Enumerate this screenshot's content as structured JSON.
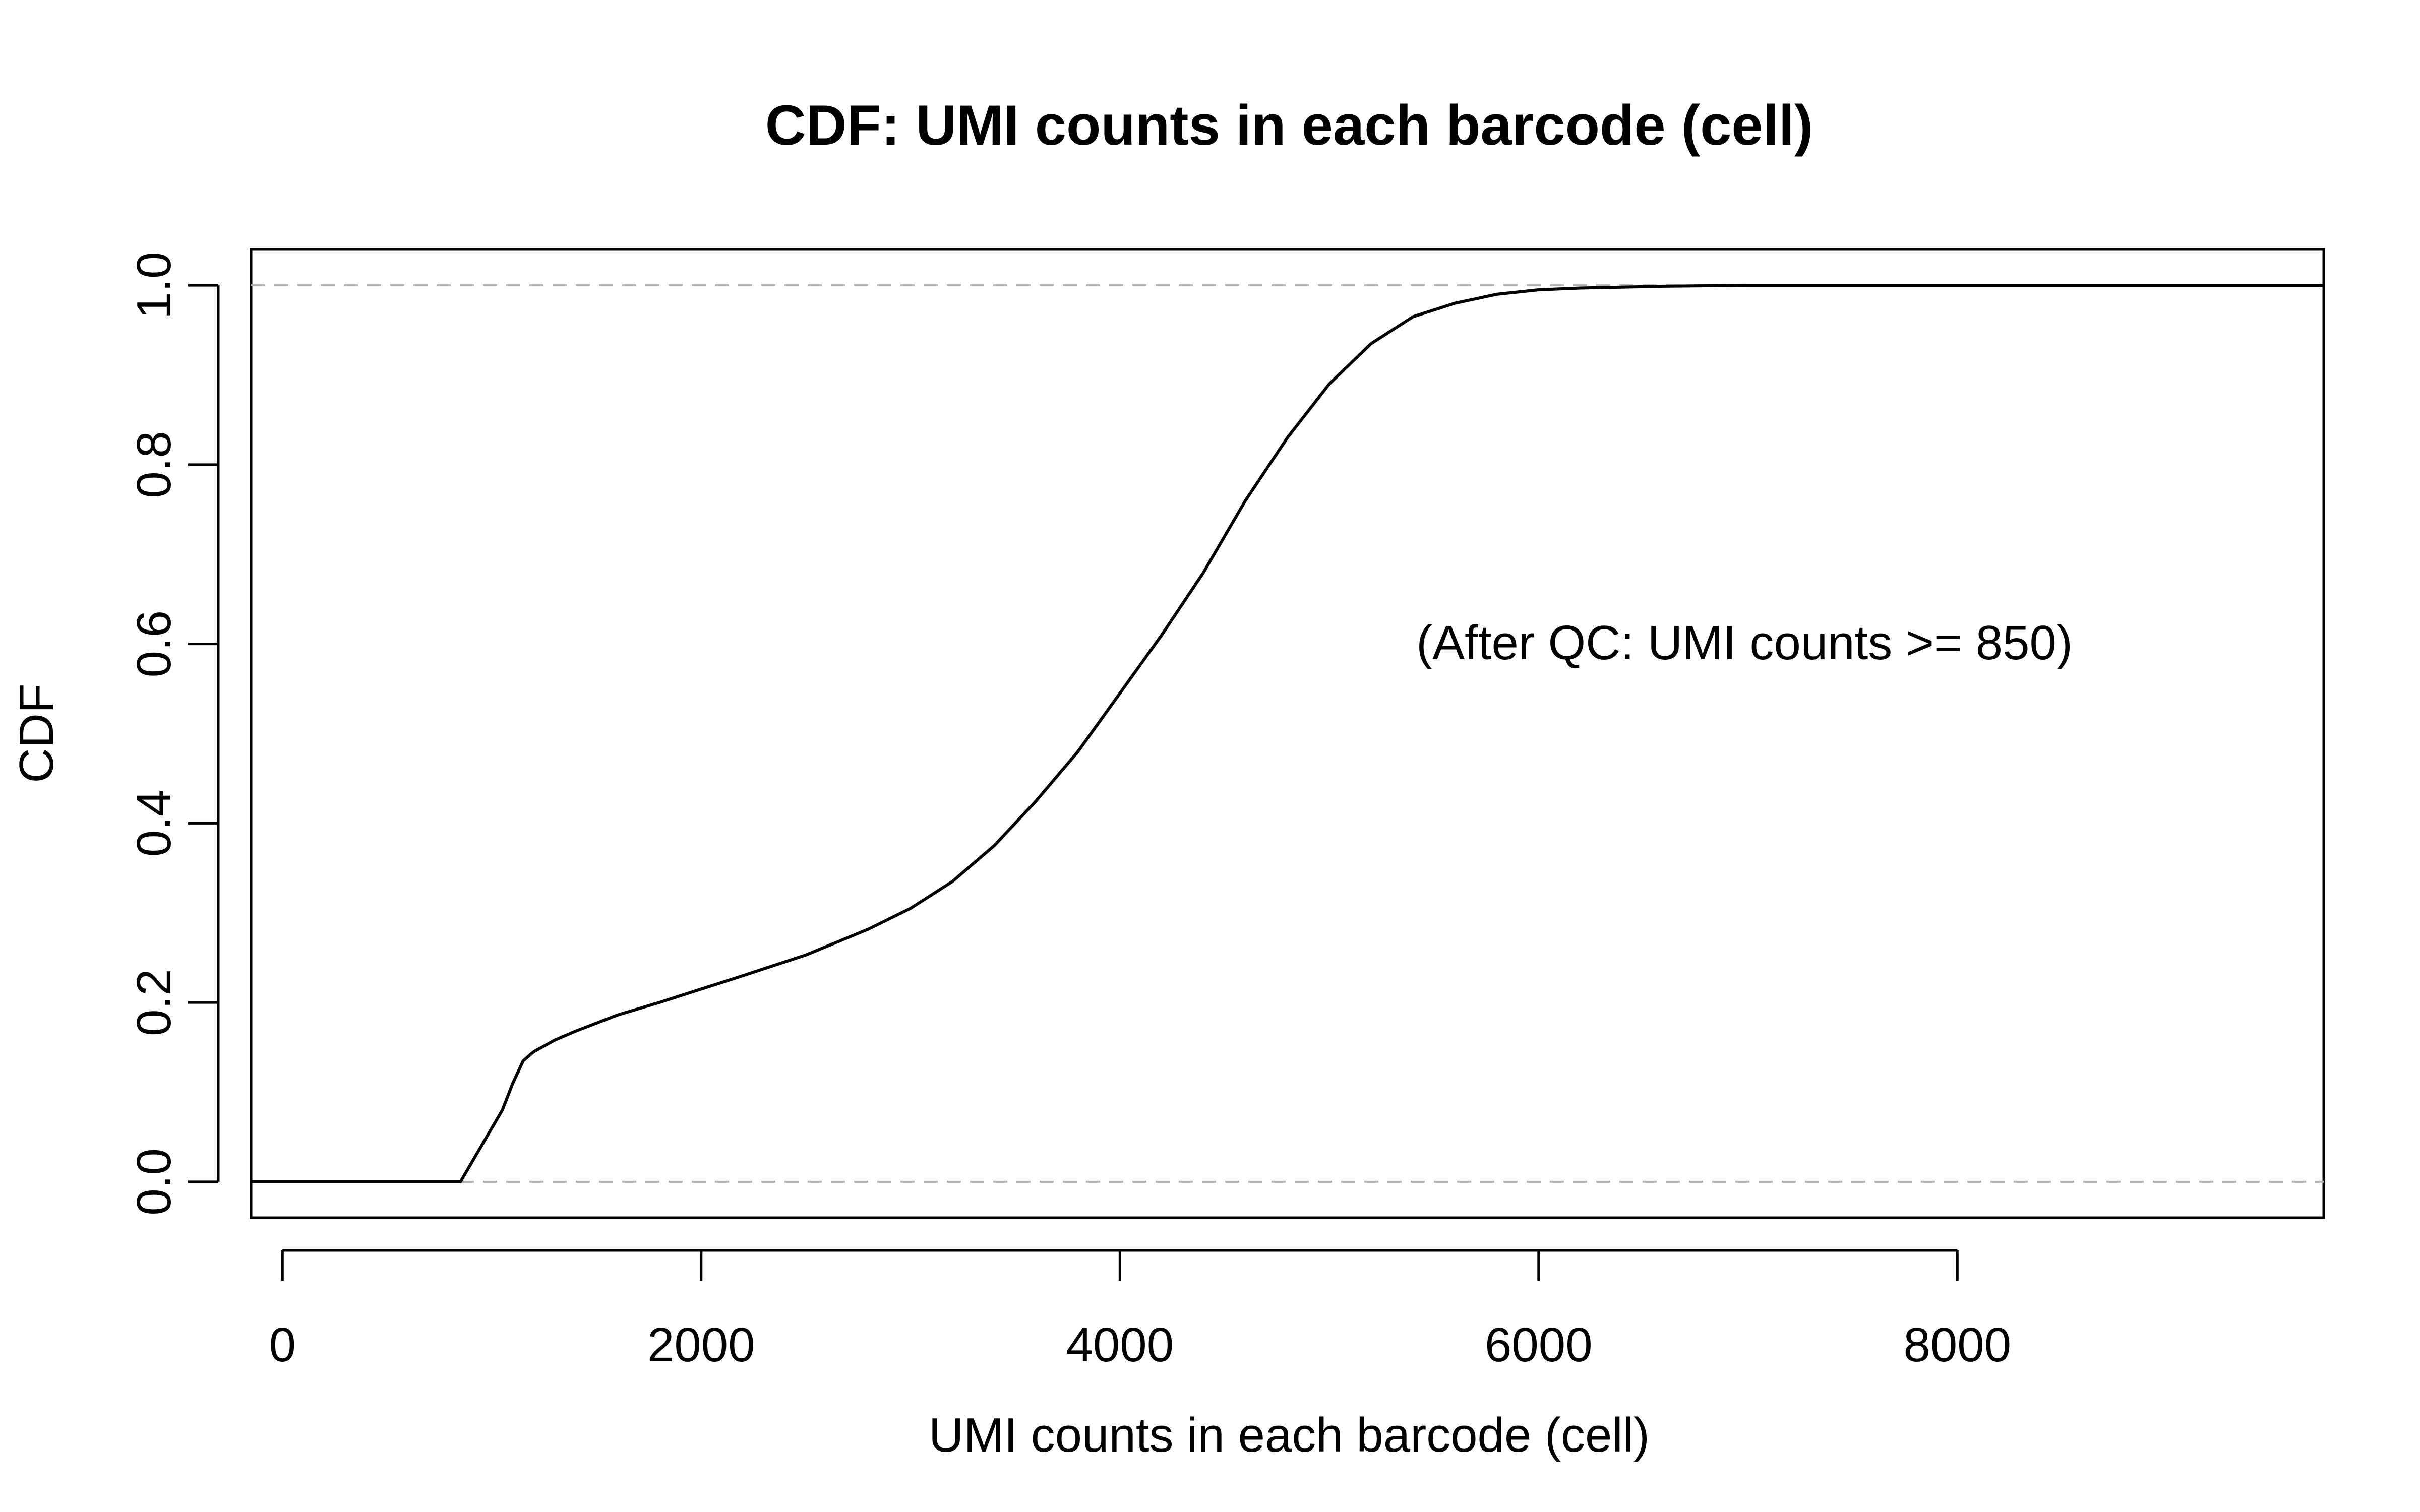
{
  "chart_data": {
    "type": "line",
    "title": "CDF: UMI counts in each barcode (cell)",
    "xlabel": "UMI counts in each barcode (cell)",
    "ylabel": "CDF",
    "xlim": [
      -150,
      9750
    ],
    "ylim": [
      -0.04,
      1.04
    ],
    "x_ticks": [
      0,
      2000,
      4000,
      6000,
      8000
    ],
    "x_tick_labels": [
      "0",
      "2000",
      "4000",
      "6000",
      "8000"
    ],
    "y_ticks": [
      0.0,
      0.2,
      0.4,
      0.6,
      0.8,
      1.0
    ],
    "y_tick_labels": [
      "0.0",
      "0.2",
      "0.4",
      "0.6",
      "0.8",
      "1.0"
    ],
    "reference_lines": [
      0,
      1
    ],
    "annotation": {
      "text": "(After QC: UMI counts >= 850)",
      "x": 7000,
      "y": 0.6
    },
    "grid": false,
    "series": [
      {
        "x": [
          -150,
          0,
          500,
          850,
          950,
          1050,
          1100,
          1150,
          1200,
          1300,
          1400,
          1600,
          1800,
          2000,
          2200,
          2500,
          2800,
          3000,
          3200,
          3400,
          3600,
          3800,
          4000,
          4200,
          4400,
          4600,
          4800,
          5000,
          5200,
          5400,
          5600,
          5800,
          6000,
          6200,
          6400,
          6600,
          6800,
          7000,
          8000,
          9000,
          9750
        ],
        "y": [
          0,
          0,
          0,
          0,
          0.04,
          0.08,
          0.11,
          0.135,
          0.145,
          0.158,
          0.168,
          0.186,
          0.2,
          0.215,
          0.23,
          0.253,
          0.282,
          0.305,
          0.335,
          0.375,
          0.425,
          0.48,
          0.545,
          0.61,
          0.68,
          0.76,
          0.83,
          0.89,
          0.935,
          0.965,
          0.98,
          0.99,
          0.995,
          0.997,
          0.998,
          0.999,
          0.9995,
          1,
          1,
          1,
          1
        ],
        "color": "#000000"
      }
    ],
    "colors": {
      "line": "#000000",
      "reference": "#b3b3b3",
      "frame": "#000000"
    }
  }
}
